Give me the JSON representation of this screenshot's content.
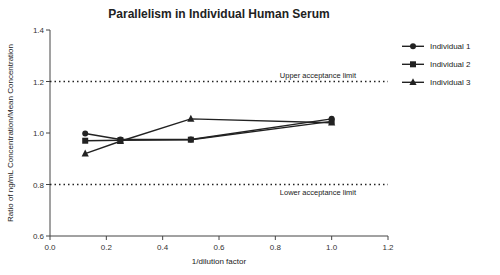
{
  "chart_data": {
    "type": "line",
    "title": "Parallelism in Individual Human Serum",
    "x_label": "1/dilution factor",
    "y_label": "Ratio of ng/mL Concentration/Mean Concentration",
    "x": [
      0.125,
      0.25,
      0.5,
      1.0
    ],
    "series": [
      {
        "name": "Individual 1",
        "color": "#222222",
        "marker": "circle",
        "values": [
          0.998,
          0.975,
          0.975,
          1.055
        ]
      },
      {
        "name": "Individual 2",
        "color": "#222222",
        "marker": "square",
        "values": [
          0.97,
          0.972,
          0.974,
          1.045
        ]
      },
      {
        "name": "Individual 3",
        "color": "#222222",
        "marker": "triangle",
        "values": [
          0.92,
          0.968,
          1.055,
          1.04
        ]
      }
    ],
    "xlim": [
      0.0,
      1.2
    ],
    "ylim": [
      0.6,
      1.4
    ],
    "xticks": [
      {
        "value": 0.0,
        "label": "0.0"
      },
      {
        "value": 0.2,
        "label": "0.2"
      },
      {
        "value": 0.4,
        "label": "0.4"
      },
      {
        "value": 0.6,
        "label": "0.6"
      },
      {
        "value": 0.8,
        "label": "0.8"
      },
      {
        "value": 1.0,
        "label": "1.0"
      },
      {
        "value": 1.2,
        "label": "1.2"
      }
    ],
    "yticks": [
      {
        "value": 0.6,
        "label": "0.6"
      },
      {
        "value": 0.8,
        "label": "0.8"
      },
      {
        "value": 1.0,
        "label": "1.0"
      },
      {
        "value": 1.2,
        "label": "1.2"
      },
      {
        "value": 1.4,
        "label": "1.4"
      }
    ],
    "reference_lines": [
      {
        "value": 1.2,
        "label": "Upper acceptance limit",
        "color": "#222222",
        "line_style": "dotted",
        "position": "above"
      },
      {
        "value": 0.8,
        "label": "Lower acceptance limit",
        "color": "#222222",
        "line_style": "dotted",
        "position": "below"
      }
    ],
    "grid": false,
    "legend": "right"
  }
}
